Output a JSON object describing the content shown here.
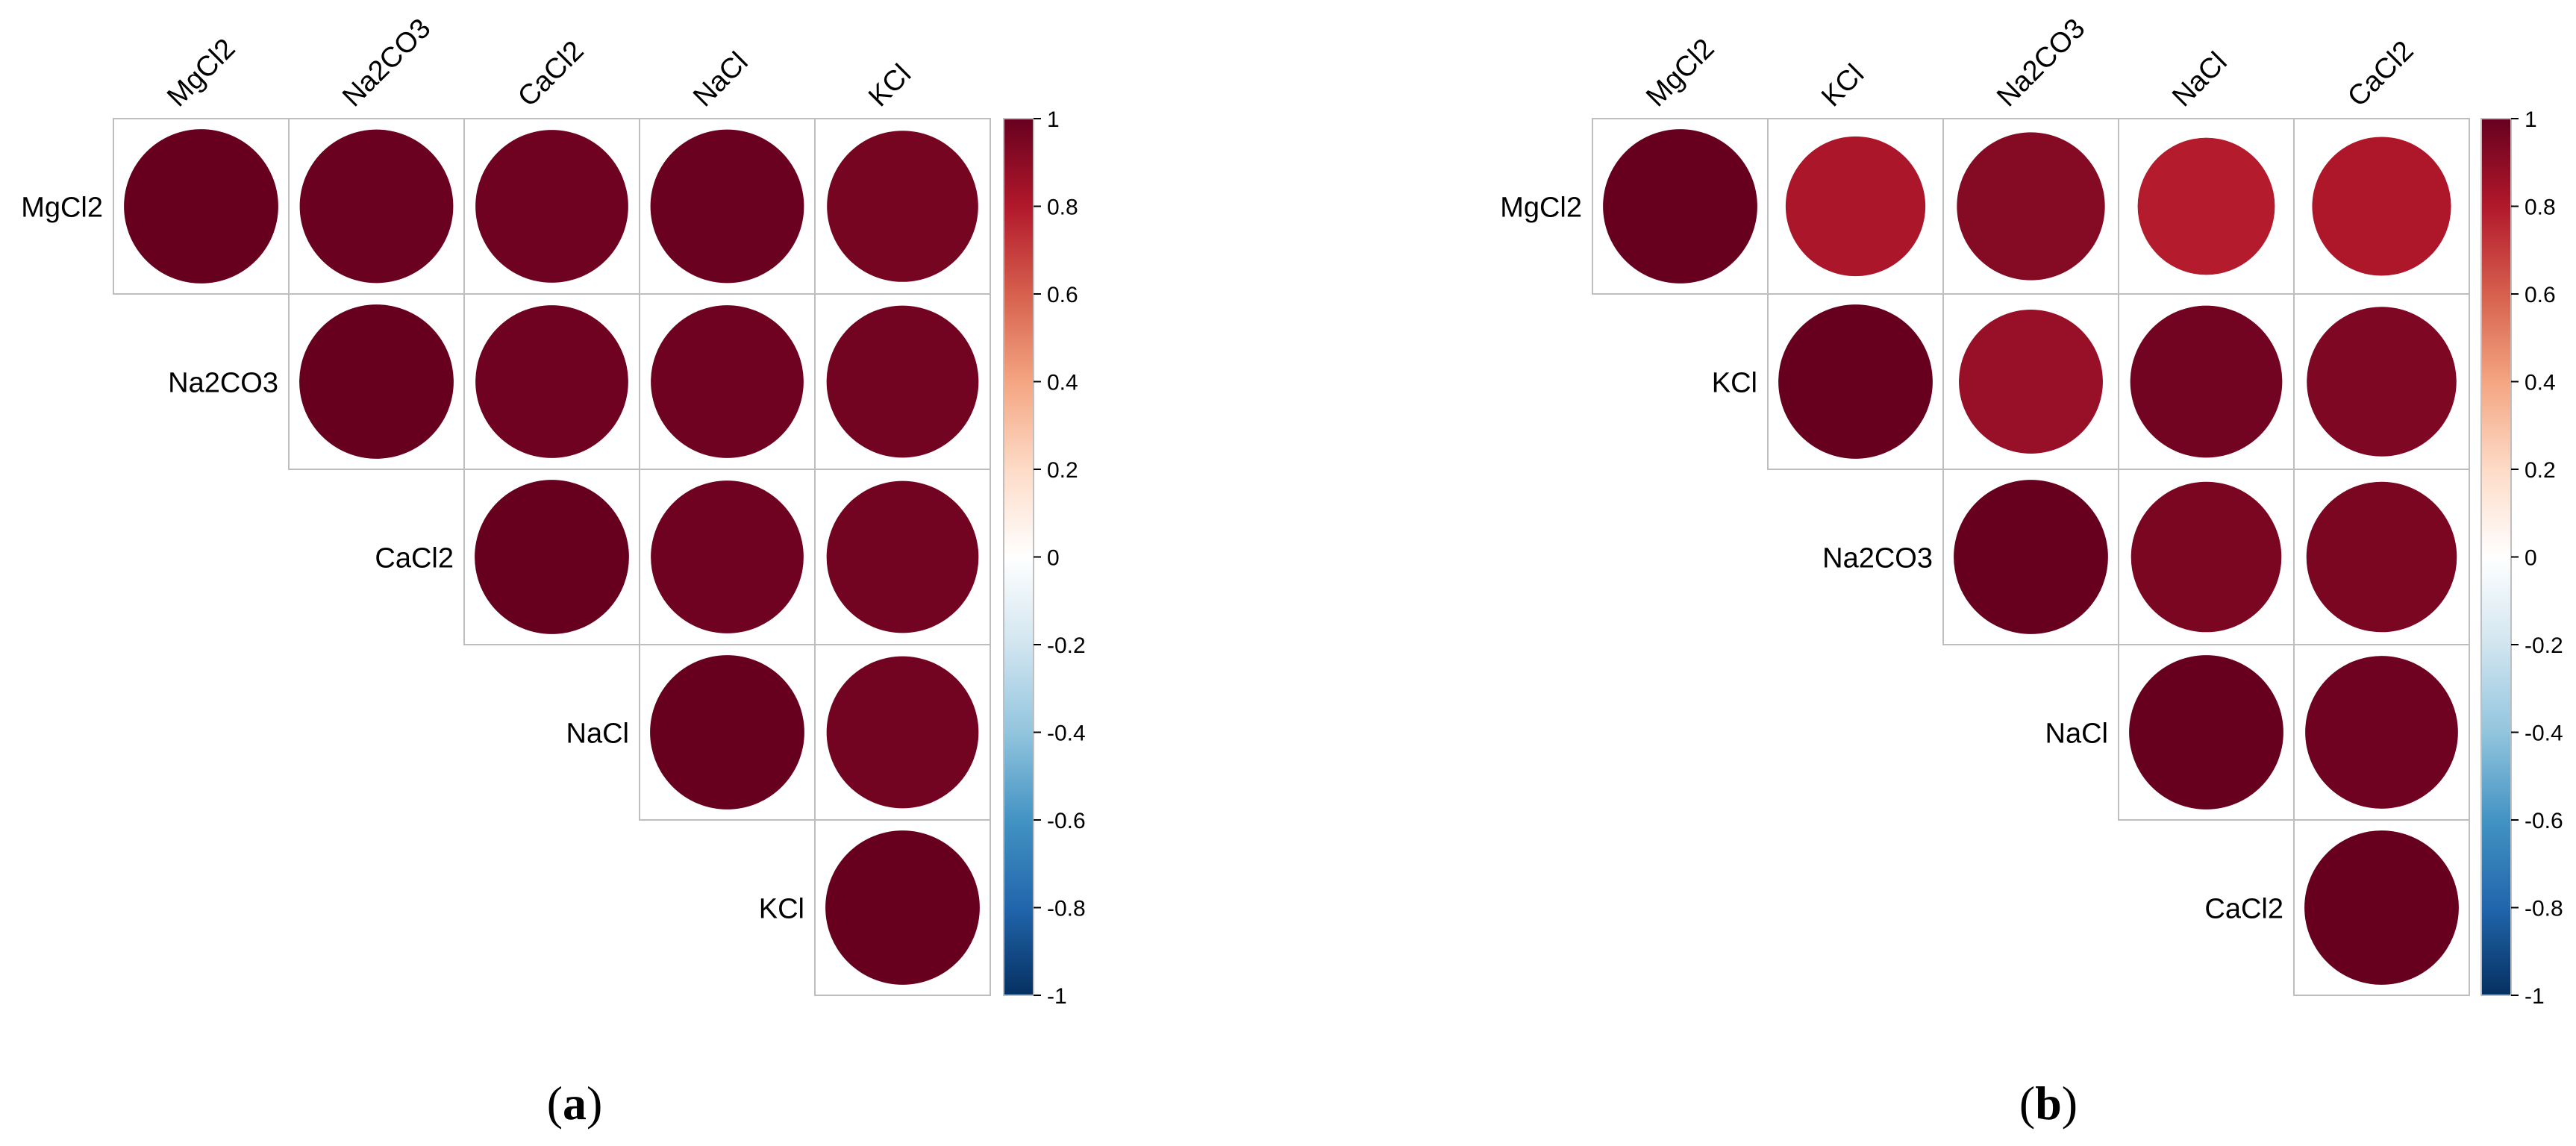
{
  "figure": {
    "panels": [
      {
        "panel_label": "(a)",
        "letter": "a"
      },
      {
        "panel_label": "(b)",
        "letter": "b"
      }
    ]
  },
  "colors": {
    "scale": [
      "#67001F",
      "#B2182B",
      "#D6604D",
      "#F4A582",
      "#FDDBC7",
      "#FFFFFF",
      "#D1E5F0",
      "#92C5DE",
      "#4393C3",
      "#2166AC",
      "#053061"
    ],
    "grid": "#BEBEBE",
    "text": "#000000"
  },
  "chart_data": [
    {
      "type": "heatmap",
      "subtype": "correlation-matrix-upper-circles",
      "variables": [
        "MgCl2",
        "Na2CO3",
        "CaCl2",
        "NaCl",
        "KCl"
      ],
      "matrix": [
        [
          1.0,
          0.99,
          0.98,
          0.99,
          0.96
        ],
        [
          0.99,
          1.0,
          0.98,
          0.98,
          0.97
        ],
        [
          0.98,
          0.98,
          1.0,
          0.98,
          0.97
        ],
        [
          0.99,
          0.98,
          0.98,
          1.0,
          0.97
        ],
        [
          0.96,
          0.97,
          0.97,
          0.97,
          1.0
        ]
      ],
      "legend": {
        "range": [
          -1,
          1
        ],
        "ticks": [
          "1",
          "0.8",
          "0.6",
          "0.4",
          "0.2",
          "0",
          "-0.2",
          "-0.4",
          "-0.6",
          "-0.8",
          "-1"
        ],
        "placement": "right"
      }
    },
    {
      "type": "heatmap",
      "subtype": "correlation-matrix-upper-circles",
      "variables": [
        "MgCl2",
        "KCl",
        "Na2CO3",
        "NaCl",
        "CaCl2"
      ],
      "matrix": [
        [
          1.0,
          0.82,
          0.92,
          0.79,
          0.81
        ],
        [
          0.82,
          1.0,
          0.87,
          0.97,
          0.94
        ],
        [
          0.92,
          0.87,
          1.0,
          0.95,
          0.95
        ],
        [
          0.79,
          0.97,
          0.95,
          1.0,
          0.98
        ],
        [
          0.81,
          0.94,
          0.95,
          0.98,
          1.0
        ]
      ],
      "legend": {
        "range": [
          -1,
          1
        ],
        "ticks": [
          "1",
          "0.8",
          "0.6",
          "0.4",
          "0.2",
          "0",
          "-0.2",
          "-0.4",
          "-0.6",
          "-0.8",
          "-1"
        ],
        "placement": "right"
      }
    }
  ]
}
